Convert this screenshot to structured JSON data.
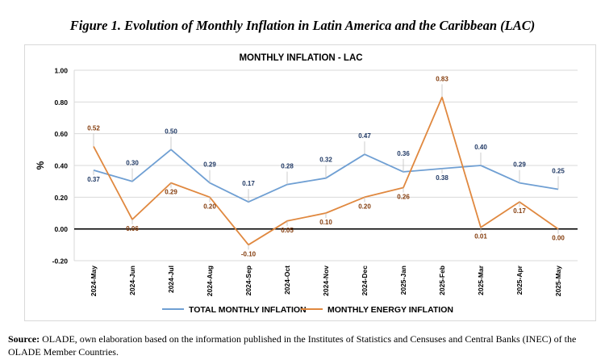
{
  "figure": {
    "title": "Figure 1. Evolution of Monthly Inflation in Latin America and the Caribbean (LAC)",
    "source_label": "Source:",
    "source_text": "OLADE, own elaboration based on the information published in the Institutes of Statistics and Censuses and Central Banks (INEC) of the OLADE Member Countries."
  },
  "chart_data": {
    "type": "line",
    "title": "MONTHLY INFLATION  - LAC",
    "ylabel": "%",
    "xlabel": "",
    "ylim": [
      -0.2,
      1.0
    ],
    "yticks": [
      "-0.20",
      "0.00",
      "0.20",
      "0.40",
      "0.60",
      "0.80",
      "1.00"
    ],
    "ytick_values": [
      -0.2,
      0.0,
      0.2,
      0.4,
      0.6,
      0.8,
      1.0
    ],
    "grid": true,
    "legend_position": "bottom",
    "categories": [
      "2024-May",
      "2024-Jun",
      "2024-Jul",
      "2024-Aug",
      "2024-Sep",
      "2024-Oct",
      "2024-Nov",
      "2024-Dec",
      "2025-Jan",
      "2025-Feb",
      "2025-Mar",
      "2025-Apr",
      "2025-May"
    ],
    "series": [
      {
        "name": "TOTAL MONTHLY INFLATION",
        "color": "#6f9fd3",
        "label_color": "#1f3864",
        "values": [
          0.37,
          0.3,
          0.5,
          0.29,
          0.17,
          0.28,
          0.32,
          0.47,
          0.36,
          0.38,
          0.4,
          0.29,
          0.25
        ],
        "labels": [
          "0.37",
          "0.30",
          "0.50",
          "0.29",
          "0.17",
          "0.28",
          "0.32",
          "0.47",
          "0.36",
          "0.38",
          "0.40",
          "0.29",
          "0.25"
        ]
      },
      {
        "name": "MONTHLY ENERGY INFLATION",
        "color": "#e0883f",
        "label_color": "#843c0c",
        "values": [
          0.52,
          0.06,
          0.29,
          0.2,
          -0.1,
          0.05,
          0.1,
          0.2,
          0.26,
          0.83,
          0.01,
          0.17,
          0.0
        ],
        "labels": [
          "0.52",
          "0.06",
          "0.29",
          "0.20",
          "-0.10",
          "0.05",
          "0.10",
          "0.20",
          "0.26",
          "0.83",
          "0.01",
          "0.17",
          "0.00"
        ]
      }
    ]
  }
}
